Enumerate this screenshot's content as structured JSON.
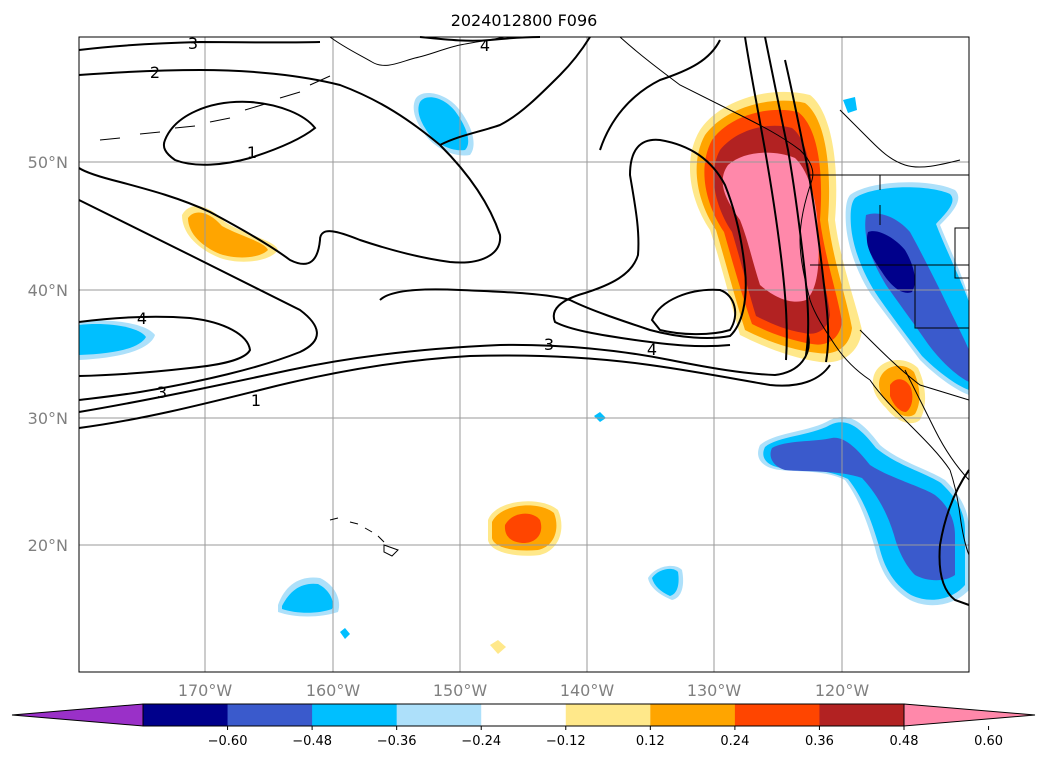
{
  "title": "2024012800 F096",
  "lat_labels": [
    "50°N",
    "40°N",
    "30°N",
    "20°N"
  ],
  "lon_labels": [
    "170°W",
    "160°W",
    "150°W",
    "140°W",
    "130°W",
    "120°W"
  ],
  "colorbar": {
    "tick_labels": [
      "−0.60",
      "−0.48",
      "−0.36",
      "−0.24",
      "−0.12",
      "0.12",
      "0.24",
      "0.36",
      "0.48",
      "0.60"
    ],
    "colors": [
      "#9a30c8",
      "#00008b",
      "#3a5acc",
      "#00bfff",
      "#ade0fa",
      "#ffffff",
      "#ffe88a",
      "#ffa500",
      "#ff4500",
      "#b22222",
      "#ff88aa"
    ]
  },
  "contour_labels": {
    "c3_top": "3",
    "c4_top": "4",
    "c2": "2",
    "c1_top": "1",
    "c4_left": "4",
    "c3_left": "3",
    "c1_bottom": "1",
    "c3_mid": "3",
    "c4_mid": "4"
  }
}
